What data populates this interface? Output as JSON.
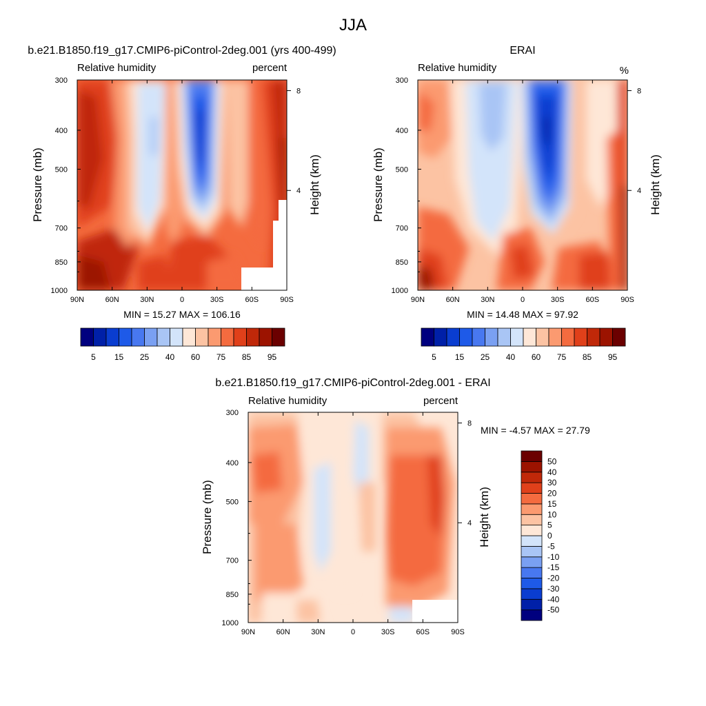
{
  "figure_title": "JJA",
  "chart_data": [
    {
      "type": "heatmap",
      "id": "model",
      "title": "b.e21.B1850.f19_g17.CMIP6-piControl-2deg.001 (yrs 400-499)",
      "left_string": "Relative humidity",
      "right_string": "percent",
      "xlabel": "",
      "ylabel": "Pressure (mb)",
      "ylabel_right": "Height (km)",
      "x_ticks": [
        "90N",
        "60N",
        "30N",
        "0",
        "30S",
        "60S",
        "90S"
      ],
      "x_range": [
        90,
        -90
      ],
      "y_ticks": [
        "300",
        "400",
        "500",
        "700",
        "850",
        "1000"
      ],
      "y_range": [
        300,
        1000
      ],
      "y_scale": "log",
      "right_ticks": [
        "8",
        "4"
      ],
      "stats_text": "MIN =  15.27  MAX = 106.16",
      "min": 15.27,
      "max": 106.16,
      "colorbar": {
        "orientation": "horizontal",
        "tick_labels": [
          "5",
          "15",
          "25",
          "40",
          "60",
          "75",
          "85",
          "95"
        ],
        "levels": [
          5,
          10,
          15,
          20,
          25,
          30,
          40,
          50,
          60,
          70,
          75,
          80,
          85,
          90,
          95
        ],
        "colors": [
          "#00007f",
          "#0020a8",
          "#0a3dd0",
          "#1e5ae8",
          "#4878f0",
          "#7aa0f2",
          "#a9c5f5",
          "#d3e4fa",
          "#fee7d7",
          "#fcc3a3",
          "#fb9a70",
          "#f46b3f",
          "#e0401a",
          "#c02809",
          "#9c1300",
          "#6b0000"
        ]
      },
      "field_description": "baseline RH with low values in subtropics, high values near surface and poles",
      "missing_region": "lower-right corner near 60S-90S below 900 mb"
    },
    {
      "type": "heatmap",
      "id": "obs",
      "title": "ERAI",
      "left_string": "Relative humidity",
      "right_string": "%",
      "xlabel": "",
      "ylabel": "Pressure (mb)",
      "ylabel_right": "Height (km)",
      "x_ticks": [
        "90N",
        "60N",
        "30N",
        "0",
        "30S",
        "60S",
        "90S"
      ],
      "x_range": [
        90,
        -90
      ],
      "y_ticks": [
        "300",
        "400",
        "500",
        "700",
        "850",
        "1000"
      ],
      "y_range": [
        300,
        1000
      ],
      "y_scale": "log",
      "right_ticks": [
        "8",
        "4"
      ],
      "stats_text": "MIN =  14.48  MAX =  97.92",
      "min": 14.48,
      "max": 97.92,
      "colorbar": {
        "orientation": "horizontal",
        "tick_labels": [
          "5",
          "15",
          "25",
          "40",
          "60",
          "75",
          "85",
          "95"
        ],
        "levels": [
          5,
          10,
          15,
          20,
          25,
          30,
          40,
          50,
          60,
          70,
          75,
          80,
          85,
          90,
          95
        ],
        "colors": [
          "#00007f",
          "#0020a8",
          "#0a3dd0",
          "#1e5ae8",
          "#4878f0",
          "#7aa0f2",
          "#a9c5f5",
          "#d3e4fa",
          "#fee7d7",
          "#fcc3a3",
          "#fb9a70",
          "#f46b3f",
          "#e0401a",
          "#c02809",
          "#9c1300",
          "#6b0000"
        ]
      }
    },
    {
      "type": "heatmap",
      "id": "diff",
      "title": "b.e21.B1850.f19_g17.CMIP6-piControl-2deg.001 - ERAI",
      "left_string": "Relative humidity",
      "right_string": "percent",
      "xlabel": "",
      "ylabel": "Pressure (mb)",
      "ylabel_right": "Height (km)",
      "x_ticks": [
        "90N",
        "60N",
        "30N",
        "0",
        "30S",
        "60S",
        "90S"
      ],
      "x_range": [
        90,
        -90
      ],
      "y_ticks": [
        "300",
        "400",
        "500",
        "700",
        "850",
        "1000"
      ],
      "y_range": [
        300,
        1000
      ],
      "y_scale": "log",
      "right_ticks": [
        "8",
        "4"
      ],
      "stats_text": "MIN =  -4.57  MAX =  27.79",
      "min": -4.57,
      "max": 27.79,
      "colorbar": {
        "orientation": "vertical",
        "tick_labels": [
          "50",
          "40",
          "30",
          "20",
          "15",
          "10",
          "5",
          "0",
          "-5",
          "-10",
          "-15",
          "-20",
          "-30",
          "-40",
          "-50"
        ],
        "levels": [
          -50,
          -40,
          -30,
          -20,
          -15,
          -10,
          -5,
          0,
          5,
          10,
          15,
          20,
          30,
          40,
          50
        ],
        "colors": [
          "#00007f",
          "#0020a8",
          "#0a3dd0",
          "#1e5ae8",
          "#4878f0",
          "#7aa0f2",
          "#a9c5f5",
          "#d3e4fa",
          "#fee7d7",
          "#fcc3a3",
          "#fb9a70",
          "#f46b3f",
          "#e0401a",
          "#c02809",
          "#9c1300",
          "#6b0000"
        ]
      }
    }
  ]
}
